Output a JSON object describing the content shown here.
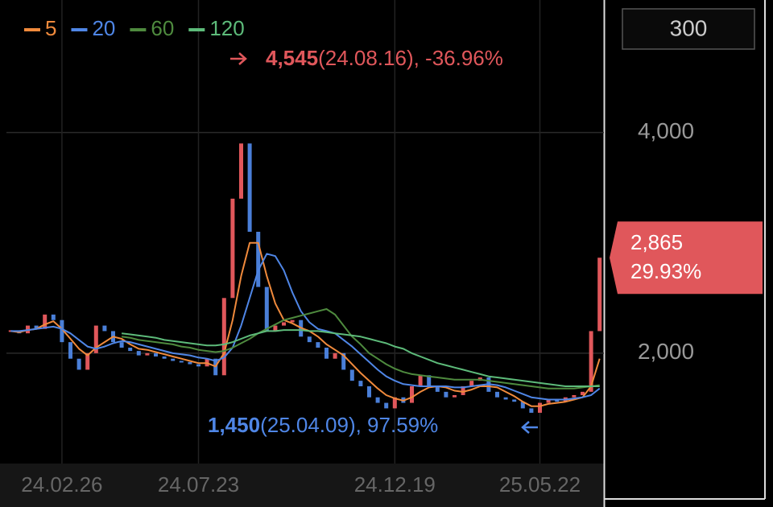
{
  "chart_data": {
    "type": "candlestick",
    "period": "300",
    "categories": [
      null,
      null,
      null,
      null,
      null,
      null,
      "24.02.26",
      null,
      null,
      null,
      null,
      null,
      null,
      null,
      null,
      null,
      null,
      null,
      null,
      null,
      null,
      null,
      "24.07.23",
      null,
      null,
      null,
      null,
      null,
      null,
      null,
      null,
      null,
      null,
      null,
      null,
      null,
      null,
      null,
      null,
      null,
      null,
      null,
      null,
      null,
      null,
      "24.12.19",
      null,
      null,
      null,
      null,
      null,
      null,
      null,
      null,
      null,
      null,
      null,
      null,
      null,
      null,
      null,
      null,
      "25.05.22",
      null,
      null,
      null,
      null,
      null,
      null,
      null
    ],
    "close": [
      2200,
      2180,
      2250,
      2220,
      2350,
      2300,
      2100,
      1950,
      1850,
      2000,
      2250,
      2200,
      2100,
      2050,
      2020,
      1980,
      2000,
      1970,
      1950,
      1930,
      1920,
      1900,
      1880,
      1950,
      1800,
      2500,
      3400,
      3900,
      3100,
      2600,
      2200,
      2250,
      2280,
      2300,
      2150,
      2100,
      2050,
      1950,
      2000,
      1850,
      1750,
      1700,
      1600,
      1550,
      1500,
      1600,
      1550,
      1700,
      1800,
      1700,
      1650,
      1600,
      1620,
      1700,
      1750,
      1780,
      1650,
      1600,
      1580,
      1560,
      1500,
      1460,
      1550,
      1580,
      1560,
      1600,
      1620,
      1650,
      2200,
      2865
    ],
    "up_color": "#e0575b",
    "down_color": "#4a7fd8",
    "series": [
      {
        "name": "5",
        "color": "#f08a3c",
        "values": [
          2200,
          2190,
          2210,
          2220,
          2260,
          2290,
          2220,
          2130,
          2040,
          1980,
          2050,
          2100,
          2150,
          2130,
          2080,
          2040,
          2030,
          2010,
          1990,
          1970,
          1950,
          1930,
          1910,
          1910,
          1880,
          2000,
          2300,
          2700,
          3000,
          3000,
          2700,
          2450,
          2300,
          2270,
          2230,
          2200,
          2150,
          2080,
          2030,
          1980,
          1900,
          1820,
          1750,
          1680,
          1620,
          1590,
          1570,
          1600,
          1650,
          1690,
          1700,
          1690,
          1660,
          1650,
          1670,
          1700,
          1700,
          1690,
          1650,
          1610,
          1560,
          1520,
          1520,
          1540,
          1550,
          1560,
          1580,
          1600,
          1700,
          1950
        ]
      },
      {
        "name": "20",
        "color": "#4f86e6",
        "values": [
          2200,
          2200,
          2210,
          2220,
          2230,
          2240,
          2220,
          2180,
          2120,
          2060,
          2040,
          2060,
          2090,
          2110,
          2100,
          2080,
          2060,
          2040,
          2020,
          2000,
          1990,
          1980,
          1960,
          1950,
          1930,
          1960,
          2050,
          2250,
          2500,
          2750,
          2900,
          2880,
          2750,
          2550,
          2380,
          2280,
          2220,
          2200,
          2180,
          2120,
          2060,
          1990,
          1920,
          1850,
          1790,
          1750,
          1720,
          1710,
          1700,
          1700,
          1700,
          1700,
          1690,
          1690,
          1700,
          1710,
          1720,
          1710,
          1690,
          1660,
          1630,
          1600,
          1590,
          1580,
          1580,
          1580,
          1590,
          1600,
          1620,
          1680
        ]
      },
      {
        "name": "60",
        "color": "#4e8a3e",
        "values": [
          null,
          null,
          null,
          null,
          null,
          null,
          null,
          null,
          null,
          null,
          null,
          null,
          null,
          2150,
          2140,
          2120,
          2110,
          2100,
          2090,
          2080,
          2060,
          2050,
          2030,
          2020,
          2010,
          2020,
          2050,
          2090,
          2130,
          2180,
          2220,
          2260,
          2300,
          2320,
          2340,
          2360,
          2380,
          2400,
          2350,
          2250,
          2150,
          2080,
          2000,
          1950,
          1900,
          1860,
          1830,
          1810,
          1800,
          1790,
          1780,
          1770,
          1760,
          1760,
          1760,
          1760,
          1750,
          1740,
          1730,
          1720,
          1710,
          1700,
          1690,
          1680,
          1680,
          1680,
          1680,
          1690,
          1700,
          1710
        ]
      },
      {
        "name": "120",
        "color": "#5dbb7a",
        "values": [
          null,
          null,
          null,
          null,
          null,
          null,
          null,
          null,
          null,
          null,
          null,
          null,
          null,
          2180,
          2170,
          2160,
          2150,
          2140,
          2120,
          2110,
          2100,
          2090,
          2080,
          2070,
          2070,
          2080,
          2100,
          2130,
          2160,
          2180,
          2200,
          2200,
          2210,
          2210,
          2210,
          2200,
          2200,
          2190,
          2180,
          2170,
          2160,
          2150,
          2130,
          2110,
          2090,
          2060,
          2040,
          2000,
          1970,
          1940,
          1910,
          1890,
          1870,
          1850,
          1830,
          1810,
          1790,
          1780,
          1770,
          1760,
          1750,
          1740,
          1730,
          1720,
          1710,
          1700,
          1700,
          1700,
          1700,
          1700
        ]
      }
    ],
    "ylim": [
      1000,
      5200
    ],
    "yticks": [
      {
        "value": 2000,
        "label": "2,000"
      },
      {
        "value": 4000,
        "label": "4,000"
      }
    ],
    "high": {
      "value": 4545,
      "label": "4,545",
      "detail": "(24.08.16), -36.96%",
      "color": "#e0575b"
    },
    "low": {
      "value": 1450,
      "label": "1,450",
      "detail": "(25.04.09), 97.59%",
      "color": "#4f86e6"
    },
    "current": {
      "value": 2865,
      "label": "2,865",
      "change": "29.93%",
      "color": "#e0575b"
    }
  }
}
